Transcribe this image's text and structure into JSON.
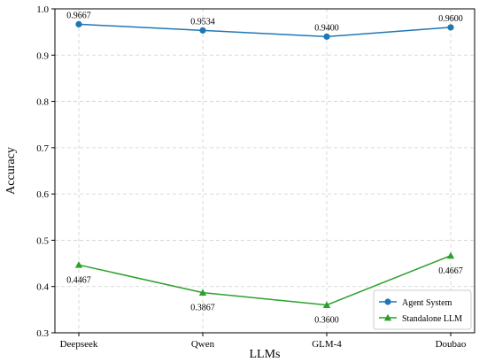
{
  "chart_data": {
    "type": "line",
    "xlabel": "LLMs",
    "ylabel": "Accuracy",
    "categories": [
      "Deepseek",
      "Qwen",
      "GLM-4",
      "Doubao"
    ],
    "ylim": [
      0.3,
      1.0
    ],
    "yticks": [
      0.3,
      0.4,
      0.5,
      0.6,
      0.7,
      0.8,
      0.9,
      1.0
    ],
    "ytick_labels": [
      "0.3",
      "0.4",
      "0.5",
      "0.6",
      "0.7",
      "0.8",
      "0.9",
      "1.0"
    ],
    "grid": true,
    "grid_style": "dashed",
    "legend_position": "lower-right",
    "series": [
      {
        "name": "Agent System",
        "values": [
          0.9667,
          0.9534,
          0.94,
          0.96
        ],
        "labels": [
          "0.9667",
          "0.9534",
          "0.9400",
          "0.9600"
        ],
        "label_position": "above",
        "color": "#1f77b4",
        "marker": "circle"
      },
      {
        "name": "Standalone LLM",
        "values": [
          0.4467,
          0.3867,
          0.36,
          0.4667
        ],
        "labels": [
          "0.4467",
          "0.3867",
          "0.3600",
          "0.4667"
        ],
        "label_position": "below",
        "color": "#2ca02c",
        "marker": "triangle"
      }
    ]
  }
}
